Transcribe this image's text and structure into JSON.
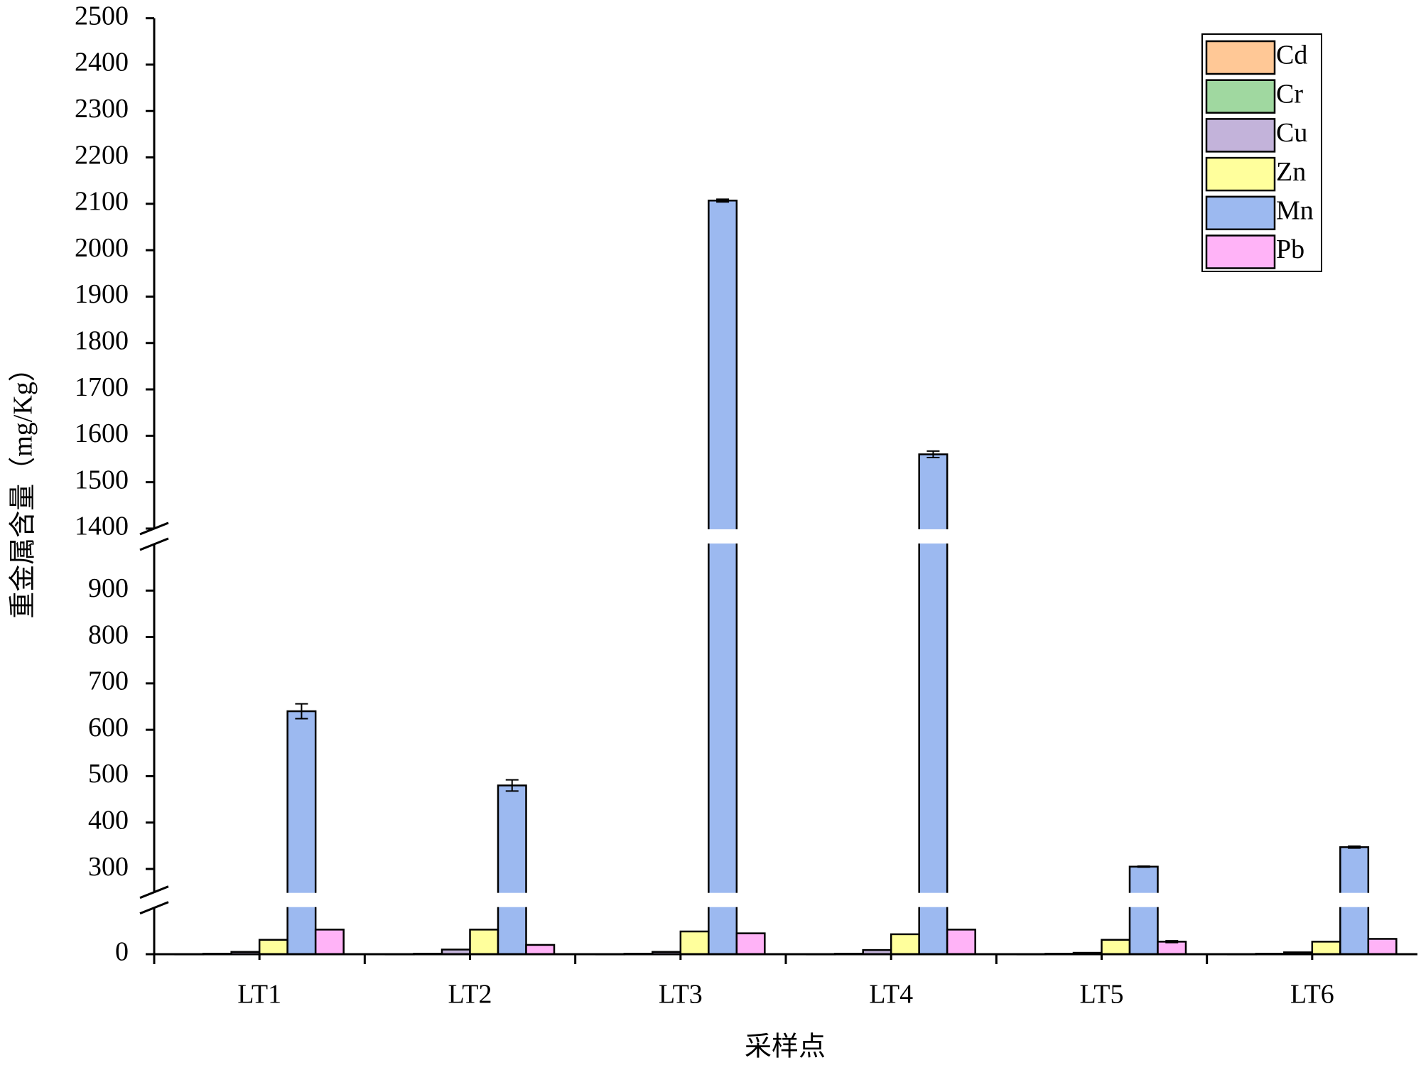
{
  "chart_data": {
    "type": "bar",
    "y_label": "重金属含量（mg/Kg）",
    "x_label": "采样点",
    "categories": [
      "LT1",
      "LT2",
      "LT3",
      "LT4",
      "LT5",
      "LT6"
    ],
    "ylim": [
      0,
      2500
    ],
    "breaks": [
      [
        100,
        250
      ],
      [
        1000,
        1400
      ]
    ],
    "yticks": [
      0,
      300,
      400,
      500,
      600,
      700,
      800,
      900,
      1400,
      1500,
      1600,
      1700,
      1800,
      1900,
      2000,
      2100,
      2200,
      2300,
      2400,
      2500
    ],
    "legend": "upper right",
    "series": [
      {
        "name": "Cd",
        "color": "#ffc896",
        "values": [
          0.3,
          0.3,
          0.3,
          0.3,
          0.3,
          0.3
        ]
      },
      {
        "name": "Cr",
        "color": "#a0d8a0",
        "values": [
          1,
          1,
          1,
          1,
          1,
          1
        ]
      },
      {
        "name": "Cu",
        "color": "#c3b3da",
        "values": [
          5,
          10,
          5,
          9,
          3,
          4
        ]
      },
      {
        "name": "Zn",
        "color": "#ffff9c",
        "values": [
          31,
          53,
          49,
          43,
          31,
          27
        ]
      },
      {
        "name": "Mn",
        "color": "#9cb9f0",
        "values": [
          640,
          480,
          2107,
          1560,
          305,
          347
        ],
        "errors": [
          16,
          12,
          3,
          7,
          1,
          2
        ]
      },
      {
        "name": "Pb",
        "color": "#ffb3f7",
        "values": [
          53,
          20,
          45,
          53,
          27,
          33
        ],
        "errors": [
          0,
          0,
          0,
          0,
          2,
          0
        ]
      }
    ]
  }
}
